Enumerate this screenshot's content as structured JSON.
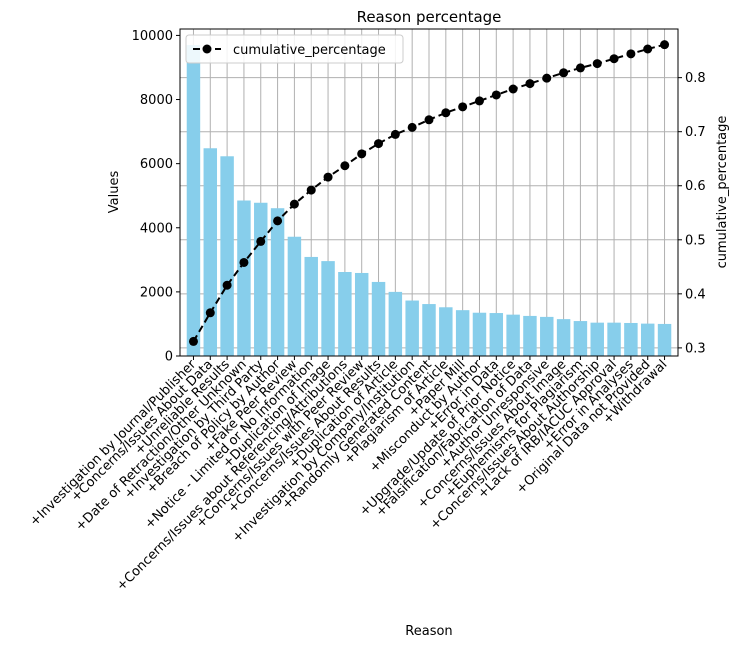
{
  "chart_data": {
    "type": "bar",
    "title": "Reason percentage",
    "xlabel": "Reason",
    "ylabel": "Values",
    "ylabel_right": "cumulative_percentage",
    "grid": true,
    "legend_placement": "top-left",
    "bar_color": "#87ceeb",
    "line_color": "#000000",
    "ylim": [
      0,
      10200
    ],
    "ylim_right": [
      0.285,
      0.89
    ],
    "yticks": [
      0,
      2000,
      4000,
      6000,
      8000,
      10000
    ],
    "yticks_right": [
      0.3,
      0.4,
      0.5,
      0.6,
      0.7,
      0.8
    ],
    "categories": [
      "+Investigation by Journal/Publisher",
      "+Concerns/Issues About Data",
      "+Unreliable Results",
      "+Date of Retraction/Other Unknown",
      "+Investigation by Third Party",
      "+Breach of Policy by Author",
      "+Fake Peer Review",
      "+Notice - Limited or No Information",
      "+Duplication of Image",
      "+Concerns/Issues about Referencing/Attributions",
      "+Concerns/Issues with Peer Review",
      "+Concerns/Issues About Results",
      "+Duplication of Article",
      "+Investigation by Company/Institution",
      "+Randomly Generated Content",
      "+Plagiarism of Article",
      "+Paper Mill",
      "+Misconduct by Author",
      "+Error in Data",
      "+Upgrade/Update of Prior Notice",
      "+Falsification/Fabrication of Data",
      "+Author Unresponsive",
      "+Concerns/Issues About Image",
      "+Euphemisms for Plagiarism",
      "+Concerns/Issues About Authorship",
      "+Lack of IRB/IACUC Approval",
      "+Error in Analyses",
      "+Original Data not Provided",
      "+Withdrawal"
    ],
    "series": [
      {
        "axis": "left",
        "values": [
          9700,
          6480,
          6230,
          4850,
          4780,
          4610,
          3720,
          3090,
          2960,
          2620,
          2590,
          2310,
          2000,
          1730,
          1620,
          1520,
          1430,
          1350,
          1340,
          1290,
          1250,
          1220,
          1150,
          1090,
          1040,
          1040,
          1030,
          1010,
          1000
        ]
      },
      {
        "name": "cumulative_percentage",
        "type": "line",
        "axis": "right",
        "values": [
          0.312,
          0.365,
          0.416,
          0.458,
          0.497,
          0.535,
          0.566,
          0.592,
          0.616,
          0.637,
          0.659,
          0.678,
          0.695,
          0.708,
          0.722,
          0.735,
          0.746,
          0.757,
          0.768,
          0.779,
          0.789,
          0.799,
          0.809,
          0.818,
          0.826,
          0.835,
          0.844,
          0.853,
          0.861
        ]
      }
    ]
  }
}
